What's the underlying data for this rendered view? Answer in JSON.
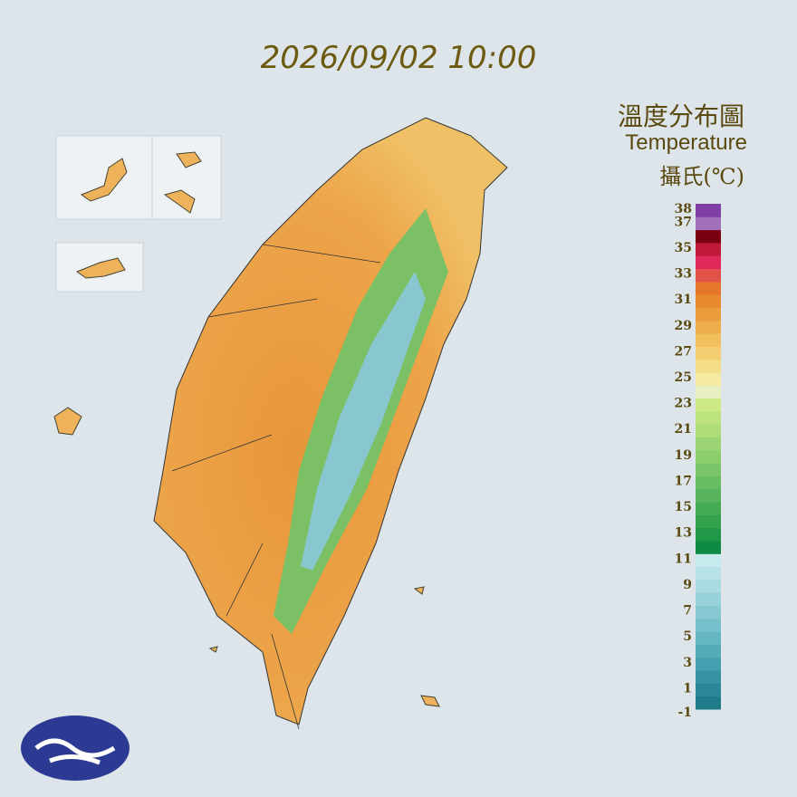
{
  "timestamp": "2026/09/02 10:00",
  "legend": {
    "title": "溫度分布圖",
    "subtitle": "Temperature",
    "unit": "攝氏(℃)",
    "range": [
      -1,
      38
    ],
    "ticks": [
      -1,
      1,
      3,
      5,
      7,
      9,
      11,
      13,
      15,
      17,
      19,
      21,
      23,
      25,
      27,
      29,
      31,
      33,
      35,
      37,
      38
    ],
    "colors": [
      "#1f7a8a",
      "#2a8797",
      "#3593a2",
      "#44a0ae",
      "#55acb9",
      "#64b6c2",
      "#76c0cb",
      "#86c9d3",
      "#97d2db",
      "#a8dbe2",
      "#b6e2e8",
      "#c6eaee",
      "#0e8a45",
      "#209848",
      "#32a24e",
      "#44ab55",
      "#57b45c",
      "#68bd62",
      "#7ac567",
      "#8ccd6c",
      "#9dd473",
      "#aedc79",
      "#bde37f",
      "#cdea86",
      "#e8efc0",
      "#f5eaa0",
      "#f5dc86",
      "#f3cd6f",
      "#f1bf5c",
      "#eeae4b",
      "#eb9c3d",
      "#e88a2f",
      "#e6762a",
      "#e2514a",
      "#e0285a",
      "#c01a3a",
      "#7a0010",
      "#a070b8",
      "#7f3fa6"
    ]
  }
}
